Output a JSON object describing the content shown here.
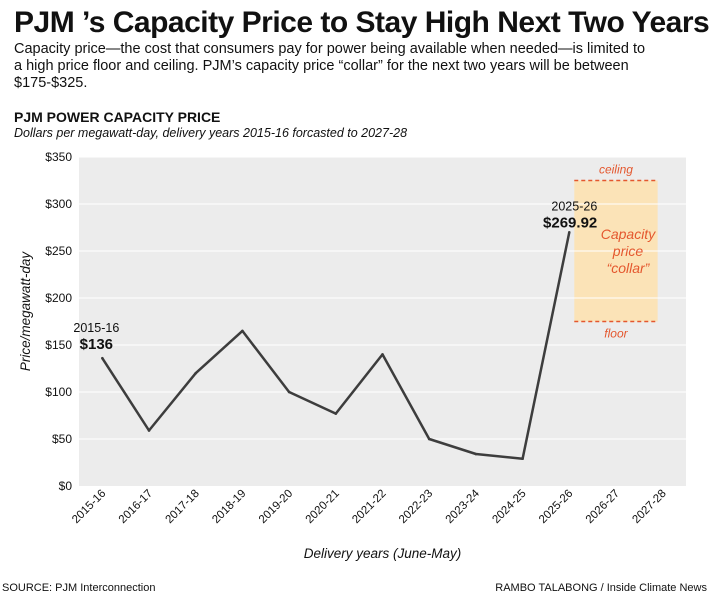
{
  "headline": "PJM ’s Capacity Price to Stay High Next Two Years",
  "dek": "Capacity price—the cost that consumers pay for power being available when needed—is limited to a high price floor and ceiling. PJM’s capacity price “collar” for the next two years will be between $175-$325.",
  "chart_data": {
    "type": "line",
    "title": "PJM POWER CAPACITY PRICE",
    "subtitle": "Dollars per megawatt-day, delivery years 2015-16 forcasted to 2027-28",
    "xlabel": "Delivery years (June-May)",
    "ylabel": "Price/megawatt-day",
    "categories": [
      "2015-16",
      "2016-17",
      "2017-18",
      "2018-19",
      "2019-20",
      "2020-21",
      "2021-22",
      "2022-23",
      "2023-24",
      "2024-25",
      "2025-26",
      "2026-27",
      "2027-28"
    ],
    "values": [
      136,
      59,
      120,
      165,
      100,
      77,
      140,
      50,
      34,
      29,
      269.92,
      null,
      null
    ],
    "ylim": [
      0,
      350
    ],
    "yticks": [
      0,
      50,
      100,
      150,
      200,
      250,
      300,
      350
    ],
    "ytick_labels": [
      "$0",
      "$50",
      "$100",
      "$150",
      "$200",
      "$250",
      "$300",
      "$350"
    ],
    "grid": true,
    "collar": {
      "floor": 175,
      "ceiling": 325,
      "start_category": "2025-26",
      "end_category": "2027-28",
      "label_lines": [
        "Capacity",
        "price",
        "“collar”"
      ],
      "ceiling_label": "ceiling",
      "floor_label": "floor"
    },
    "annotations": [
      {
        "category": "2015-16",
        "year_label": "2015-16",
        "value_label": "$136"
      },
      {
        "category": "2025-26",
        "year_label": "2025-26",
        "value_label": "$269.92"
      }
    ]
  },
  "colors": {
    "line": "#3d3d3d",
    "collar_fill": "#fbe3b7",
    "collar_dash": "#e4572e",
    "collar_text": "#e4572e",
    "plot_bg": "#ececec",
    "grid": "#ffffff"
  },
  "footer": {
    "source": "SOURCE: PJM Interconnection",
    "credit": "RAMBO TALABONG / Inside Climate News"
  }
}
